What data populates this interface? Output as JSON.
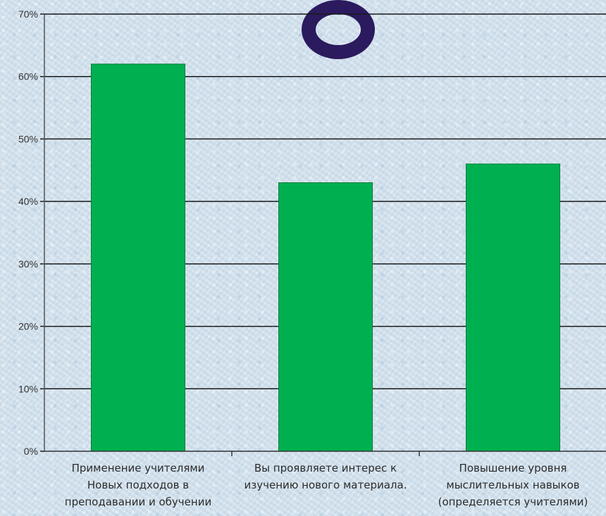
{
  "chart_data": {
    "type": "bar",
    "categories": [
      [
        "Применение учителями",
        "Новых подходов в",
        "преподавании и обучении"
      ],
      [
        "Вы проявляете интерес к",
        "изучению нового материала."
      ],
      [
        "Повышение уровня",
        "мыслительных навыков",
        "(определяется учителями)"
      ]
    ],
    "values": [
      62,
      43,
      46
    ],
    "y_ticks": [
      "0%",
      "10%",
      "20%",
      "30%",
      "40%",
      "50%",
      "60%",
      "70%"
    ],
    "ylim": [
      0,
      70
    ],
    "y_step": 10,
    "grid": true,
    "legend": "none",
    "bar_color": "#00b050",
    "grid_color": "#1a1a1a"
  },
  "decoration": {
    "title_fragment_color": "#2b1a5e"
  }
}
